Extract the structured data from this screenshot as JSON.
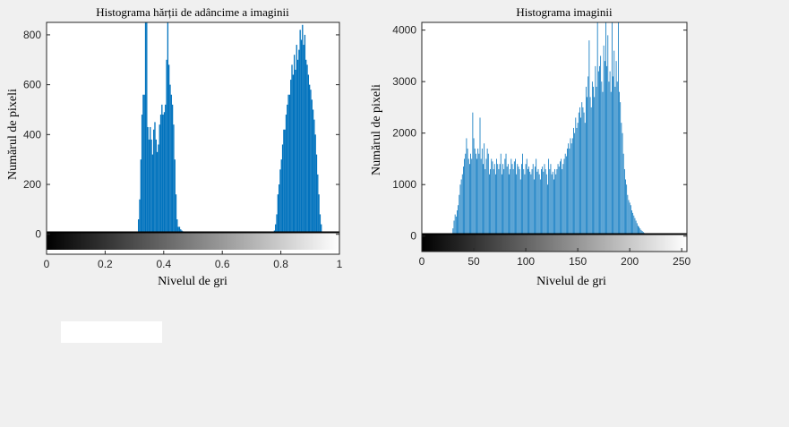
{
  "chart_data": [
    {
      "type": "bar",
      "title": "Histograma hărții de adâncime  a imaginii",
      "xlabel": "Nivelul de gri",
      "ylabel": "Numărul de pixeli",
      "xlim": [
        0,
        1
      ],
      "ylim": [
        -80,
        850
      ],
      "xticks": [
        0,
        0.2,
        0.4,
        0.6,
        0.8,
        1
      ],
      "xtick_labels": [
        "0",
        "0.2",
        "0.4",
        "0.6",
        "0.8",
        "1"
      ],
      "yticks": [
        0,
        200,
        400,
        600,
        800
      ],
      "ytick_labels": [
        "0",
        "200",
        "400",
        "600",
        "800"
      ],
      "bar_color": "#0072bd",
      "colorbar": "grayscale",
      "grid": false,
      "bins": [
        [
          0.314,
          60
        ],
        [
          0.318,
          140
        ],
        [
          0.322,
          300
        ],
        [
          0.326,
          480
        ],
        [
          0.33,
          560
        ],
        [
          0.334,
          560
        ],
        [
          0.338,
          850
        ],
        [
          0.342,
          850
        ],
        [
          0.346,
          430
        ],
        [
          0.35,
          380
        ],
        [
          0.354,
          430
        ],
        [
          0.358,
          380
        ],
        [
          0.362,
          320
        ],
        [
          0.366,
          420
        ],
        [
          0.37,
          450
        ],
        [
          0.374,
          380
        ],
        [
          0.378,
          330
        ],
        [
          0.382,
          360
        ],
        [
          0.386,
          440
        ],
        [
          0.39,
          480
        ],
        [
          0.394,
          520
        ],
        [
          0.398,
          480
        ],
        [
          0.402,
          490
        ],
        [
          0.406,
          520
        ],
        [
          0.41,
          700
        ],
        [
          0.414,
          850
        ],
        [
          0.418,
          680
        ],
        [
          0.422,
          600
        ],
        [
          0.426,
          560
        ],
        [
          0.43,
          520
        ],
        [
          0.434,
          440
        ],
        [
          0.438,
          300
        ],
        [
          0.442,
          160
        ],
        [
          0.446,
          60
        ],
        [
          0.45,
          30
        ],
        [
          0.454,
          30
        ],
        [
          0.458,
          20
        ],
        [
          0.462,
          15
        ],
        [
          0.466,
          12
        ],
        [
          0.472,
          10
        ],
        [
          0.48,
          8
        ],
        [
          0.49,
          6
        ],
        [
          0.5,
          6
        ],
        [
          0.52,
          5
        ],
        [
          0.54,
          5
        ],
        [
          0.56,
          6
        ],
        [
          0.58,
          5
        ],
        [
          0.6,
          4
        ],
        [
          0.62,
          5
        ],
        [
          0.64,
          6
        ],
        [
          0.66,
          5
        ],
        [
          0.68,
          4
        ],
        [
          0.7,
          5
        ],
        [
          0.72,
          4
        ],
        [
          0.74,
          4
        ],
        [
          0.76,
          3
        ],
        [
          0.778,
          15
        ],
        [
          0.782,
          40
        ],
        [
          0.786,
          80
        ],
        [
          0.79,
          160
        ],
        [
          0.794,
          200
        ],
        [
          0.798,
          260
        ],
        [
          0.802,
          300
        ],
        [
          0.806,
          360
        ],
        [
          0.81,
          420
        ],
        [
          0.814,
          420
        ],
        [
          0.818,
          480
        ],
        [
          0.822,
          520
        ],
        [
          0.826,
          560
        ],
        [
          0.83,
          560
        ],
        [
          0.834,
          620
        ],
        [
          0.838,
          680
        ],
        [
          0.842,
          640
        ],
        [
          0.846,
          720
        ],
        [
          0.85,
          660
        ],
        [
          0.854,
          760
        ],
        [
          0.858,
          700
        ],
        [
          0.862,
          740
        ],
        [
          0.866,
          820
        ],
        [
          0.87,
          780
        ],
        [
          0.874,
          840
        ],
        [
          0.878,
          760
        ],
        [
          0.882,
          800
        ],
        [
          0.886,
          700
        ],
        [
          0.89,
          680
        ],
        [
          0.894,
          640
        ],
        [
          0.898,
          600
        ],
        [
          0.902,
          580
        ],
        [
          0.906,
          540
        ],
        [
          0.91,
          500
        ],
        [
          0.914,
          460
        ],
        [
          0.918,
          400
        ],
        [
          0.922,
          320
        ],
        [
          0.926,
          240
        ],
        [
          0.93,
          160
        ],
        [
          0.934,
          80
        ],
        [
          0.938,
          40
        ]
      ]
    },
    {
      "type": "bar",
      "title": "Histograma imaginii",
      "xlabel": "Nivelul de gri",
      "ylabel": "Numărul de pixeli",
      "xlim": [
        0,
        255
      ],
      "ylim": [
        -300,
        4150
      ],
      "xticks": [
        0,
        50,
        100,
        150,
        200,
        250
      ],
      "xtick_labels": [
        "0",
        "50",
        "100",
        "150",
        "200",
        "250"
      ],
      "yticks": [
        0,
        1000,
        2000,
        3000,
        4000
      ],
      "ytick_labels": [
        "0",
        "1000",
        "2000",
        "3000",
        "4000"
      ],
      "bar_color": "#0072bd",
      "colorbar": "grayscale",
      "grid": false,
      "bins": [
        [
          30,
          150
        ],
        [
          31,
          300
        ],
        [
          32,
          420
        ],
        [
          33,
          380
        ],
        [
          34,
          500
        ],
        [
          35,
          600
        ],
        [
          36,
          800
        ],
        [
          37,
          1000
        ],
        [
          38,
          1100
        ],
        [
          39,
          1200
        ],
        [
          40,
          1350
        ],
        [
          41,
          1500
        ],
        [
          42,
          1600
        ],
        [
          43,
          1900
        ],
        [
          44,
          1700
        ],
        [
          45,
          1500
        ],
        [
          46,
          1400
        ],
        [
          47,
          1600
        ],
        [
          48,
          1500
        ],
        [
          49,
          2400
        ],
        [
          50,
          1900
        ],
        [
          51,
          1700
        ],
        [
          52,
          1600
        ],
        [
          53,
          1500
        ],
        [
          54,
          1700
        ],
        [
          55,
          1600
        ],
        [
          56,
          2300
        ],
        [
          57,
          1500
        ],
        [
          58,
          1700
        ],
        [
          59,
          1400
        ],
        [
          60,
          1800
        ],
        [
          61,
          1300
        ],
        [
          62,
          1500
        ],
        [
          63,
          1700
        ],
        [
          64,
          1600
        ],
        [
          65,
          1200
        ],
        [
          66,
          1300
        ],
        [
          67,
          1500
        ],
        [
          68,
          1450
        ],
        [
          69,
          1300
        ],
        [
          70,
          1400
        ],
        [
          71,
          1200
        ],
        [
          72,
          1500
        ],
        [
          73,
          1400
        ],
        [
          74,
          1300
        ],
        [
          75,
          1400
        ],
        [
          76,
          1600
        ],
        [
          77,
          1200
        ],
        [
          78,
          1400
        ],
        [
          79,
          1300
        ],
        [
          80,
          1500
        ],
        [
          81,
          1600
        ],
        [
          82,
          1350
        ],
        [
          83,
          1400
        ],
        [
          84,
          1200
        ],
        [
          85,
          1300
        ],
        [
          86,
          1500
        ],
        [
          87,
          1400
        ],
        [
          88,
          1300
        ],
        [
          89,
          1450
        ],
        [
          90,
          1500
        ],
        [
          91,
          1200
        ],
        [
          92,
          1400
        ],
        [
          93,
          1350
        ],
        [
          94,
          1300
        ],
        [
          95,
          1100
        ],
        [
          96,
          1400
        ],
        [
          97,
          1600
        ],
        [
          98,
          1300
        ],
        [
          99,
          1200
        ],
        [
          100,
          1400
        ],
        [
          101,
          1500
        ],
        [
          102,
          1300
        ],
        [
          103,
          1350
        ],
        [
          104,
          1250
        ],
        [
          105,
          1200
        ],
        [
          106,
          1300
        ],
        [
          107,
          1400
        ],
        [
          108,
          1100
        ],
        [
          109,
          1350
        ],
        [
          110,
          1500
        ],
        [
          111,
          1250
        ],
        [
          112,
          1300
        ],
        [
          113,
          1200
        ],
        [
          114,
          1100
        ],
        [
          115,
          1300
        ],
        [
          116,
          1350
        ],
        [
          117,
          1250
        ],
        [
          118,
          1400
        ],
        [
          119,
          1300
        ],
        [
          120,
          1200
        ],
        [
          121,
          1000
        ],
        [
          122,
          1500
        ],
        [
          123,
          1300
        ],
        [
          124,
          1400
        ],
        [
          125,
          1200
        ],
        [
          126,
          1250
        ],
        [
          127,
          1100
        ],
        [
          128,
          1300
        ],
        [
          129,
          1200
        ],
        [
          130,
          1300
        ],
        [
          131,
          1400
        ],
        [
          132,
          1350
        ],
        [
          133,
          1450
        ],
        [
          134,
          1500
        ],
        [
          135,
          1300
        ],
        [
          136,
          1400
        ],
        [
          137,
          1500
        ],
        [
          138,
          1600
        ],
        [
          139,
          1550
        ],
        [
          140,
          1700
        ],
        [
          141,
          1800
        ],
        [
          142,
          1700
        ],
        [
          143,
          1900
        ],
        [
          144,
          1800
        ],
        [
          145,
          1900
        ],
        [
          146,
          2100
        ],
        [
          147,
          2000
        ],
        [
          148,
          2300
        ],
        [
          149,
          2100
        ],
        [
          150,
          2200
        ],
        [
          151,
          2400
        ],
        [
          152,
          2500
        ],
        [
          153,
          2300
        ],
        [
          154,
          2600
        ],
        [
          155,
          2500
        ],
        [
          156,
          2400
        ],
        [
          157,
          2200
        ],
        [
          158,
          2900
        ],
        [
          159,
          2700
        ],
        [
          160,
          3100
        ],
        [
          161,
          3800
        ],
        [
          162,
          2700
        ],
        [
          163,
          2500
        ],
        [
          164,
          3000
        ],
        [
          165,
          2900
        ],
        [
          166,
          2700
        ],
        [
          167,
          3300
        ],
        [
          168,
          2900
        ],
        [
          169,
          4150
        ],
        [
          170,
          3200
        ],
        [
          171,
          3300
        ],
        [
          172,
          3500
        ],
        [
          173,
          3000
        ],
        [
          174,
          2800
        ],
        [
          175,
          3700
        ],
        [
          176,
          3400
        ],
        [
          177,
          4150
        ],
        [
          178,
          3300
        ],
        [
          179,
          3900
        ],
        [
          180,
          3000
        ],
        [
          181,
          3200
        ],
        [
          182,
          2800
        ],
        [
          183,
          4150
        ],
        [
          184,
          3100
        ],
        [
          185,
          3600
        ],
        [
          186,
          2900
        ],
        [
          187,
          3400
        ],
        [
          188,
          3000
        ],
        [
          189,
          4150
        ],
        [
          190,
          2800
        ],
        [
          191,
          2600
        ],
        [
          192,
          2200
        ],
        [
          193,
          2000
        ],
        [
          194,
          1600
        ],
        [
          195,
          1300
        ],
        [
          196,
          1100
        ],
        [
          197,
          1000
        ],
        [
          198,
          800
        ],
        [
          199,
          700
        ],
        [
          200,
          650
        ],
        [
          201,
          600
        ],
        [
          202,
          500
        ],
        [
          203,
          450
        ],
        [
          204,
          400
        ],
        [
          205,
          350
        ],
        [
          206,
          300
        ],
        [
          207,
          250
        ],
        [
          208,
          200
        ],
        [
          209,
          180
        ],
        [
          210,
          150
        ],
        [
          211,
          120
        ],
        [
          212,
          100
        ],
        [
          213,
          80
        ],
        [
          214,
          60
        ],
        [
          215,
          50
        ],
        [
          216,
          40
        ],
        [
          217,
          30
        ],
        [
          218,
          25
        ],
        [
          219,
          20
        ],
        [
          220,
          15
        ],
        [
          222,
          10
        ],
        [
          224,
          6
        ],
        [
          226,
          4
        ]
      ]
    }
  ]
}
